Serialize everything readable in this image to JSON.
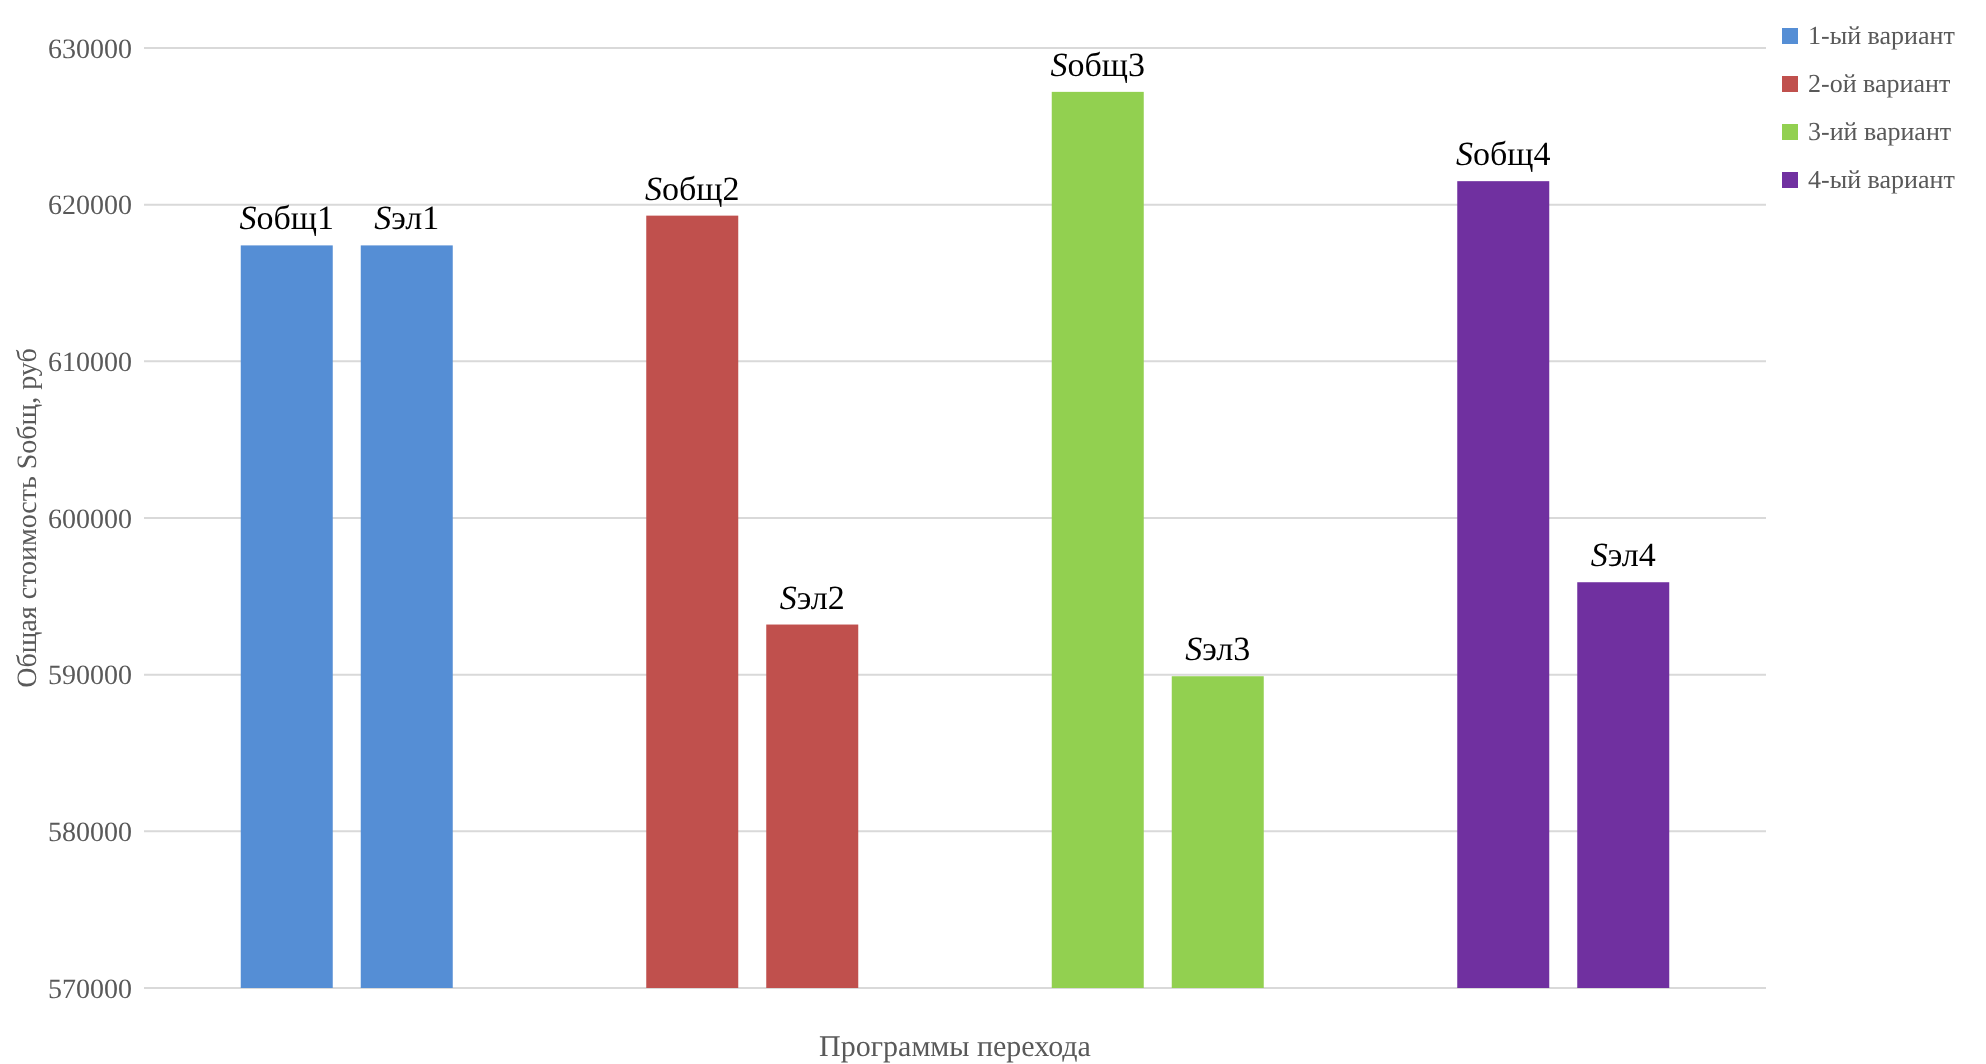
{
  "chart_data": {
    "type": "bar",
    "xlabel": "Программы перехода",
    "ylabel": "Общая стоимость Sобщ, руб",
    "categories": [
      null,
      null,
      null,
      null,
      null,
      null,
      null,
      null
    ],
    "series": [
      {
        "name": "1-ый вариант",
        "color": "#558ed5",
        "values": [
          617400,
          617400,
          null,
          null,
          null,
          null,
          null,
          null
        ],
        "value_labels": [
          "Sобщ1",
          "Sэл1",
          null,
          null,
          null,
          null,
          null,
          null
        ]
      },
      {
        "name": "2-ой вариант",
        "color": "#c0504d",
        "values": [
          null,
          null,
          619300,
          593200,
          null,
          null,
          null,
          null
        ],
        "value_labels": [
          null,
          null,
          "Sобщ2",
          "Sэл2",
          null,
          null,
          null,
          null
        ]
      },
      {
        "name": "3-ий вариант",
        "color": "#92d050",
        "values": [
          null,
          null,
          null,
          null,
          627200,
          589900,
          null,
          null
        ],
        "value_labels": [
          null,
          null,
          null,
          null,
          "Sобщ3",
          "Sэл3",
          null,
          null
        ]
      },
      {
        "name": "4-ый вариант",
        "color": "#7030a0",
        "values": [
          null,
          null,
          null,
          null,
          null,
          null,
          621500,
          595900
        ],
        "value_labels": [
          null,
          null,
          null,
          null,
          null,
          null,
          "Sобщ4",
          "Sэл4"
        ]
      }
    ],
    "ylim": [
      570000,
      630000
    ],
    "yticks": [
      570000,
      580000,
      590000,
      600000,
      610000,
      620000,
      630000
    ],
    "grid": "y",
    "legend": "top right"
  }
}
